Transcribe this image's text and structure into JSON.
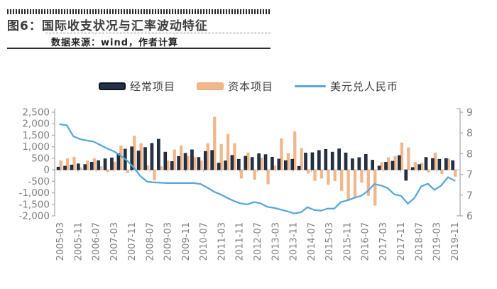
{
  "header": {
    "title": "图6：国际收支状况与汇率波动特征",
    "source": "数据来源：wind，作者计算"
  },
  "legend": [
    {
      "label": "经常项目",
      "swatch": "dark-bar",
      "color": "#243246"
    },
    {
      "label": "资本项目",
      "swatch": "orange-bar",
      "color": "#f1b78c"
    },
    {
      "label": "美元兑人民币",
      "swatch": "blue-line",
      "color": "#58a8da"
    }
  ],
  "chart_data": {
    "type": "bar+line",
    "title": "国际收支状况与汇率波动特征",
    "x_start": "2005-03",
    "x_end": "2019-11",
    "n_points": 60,
    "x_tick_labels": [
      "2005-03",
      "2005-11",
      "2006-07",
      "2007-03",
      "2007-11",
      "2008-07",
      "2009-03",
      "2009-11",
      "2010-07",
      "2011-03",
      "2011-11",
      "2012-07",
      "2013-03",
      "2013-11",
      "2014-07",
      "2015-03",
      "2015-11",
      "2016-07",
      "2017-03",
      "2017-11",
      "2018-07",
      "2019-03",
      "2019-11"
    ],
    "left_axis": {
      "min": -2000,
      "max": 2500,
      "step": 500,
      "tick_labels": [
        "2,500",
        "2,000",
        "1,500",
        "1,000",
        "500",
        "0",
        "-500",
        "-1,000",
        "-1,500",
        "-2,000"
      ]
    },
    "right_axis": {
      "min": 6,
      "max": 9,
      "tick_labels": [
        "9",
        "8",
        "8",
        "7",
        "7",
        "6"
      ]
    },
    "grid": false,
    "legend_position": "top",
    "series": [
      {
        "name": "经常项目",
        "type": "bar",
        "axis": "left",
        "color": "#243246",
        "edge_color": "#10151d",
        "values": [
          120,
          160,
          210,
          260,
          230,
          330,
          400,
          480,
          520,
          700,
          900,
          1000,
          820,
          970,
          1150,
          1330,
          770,
          360,
          580,
          715,
          870,
          540,
          800,
          845,
          290,
          390,
          630,
          460,
          590,
          540,
          700,
          660,
          550,
          470,
          400,
          460,
          150,
          730,
          745,
          840,
          890,
          770,
          910,
          735,
          480,
          530,
          670,
          420,
          165,
          330,
          375,
          620,
          -460,
          100,
          230,
          540,
          490,
          460,
          490,
          400
        ]
      },
      {
        "name": "资本项目",
        "type": "bar",
        "axis": "left",
        "color": "#f1b78c",
        "values": [
          410,
          500,
          560,
          100,
          400,
          500,
          150,
          -100,
          350,
          1050,
          -150,
          1480,
          1150,
          200,
          -460,
          150,
          400,
          880,
          1050,
          600,
          550,
          400,
          1150,
          2300,
          1120,
          1560,
          1150,
          -380,
          745,
          -430,
          530,
          -630,
          180,
          1360,
          715,
          1660,
          940,
          -160,
          -480,
          -380,
          -650,
          -490,
          -915,
          -1340,
          -1230,
          -560,
          -1130,
          -1555,
          335,
          540,
          590,
          1180,
          970,
          335,
          305,
          -120,
          745,
          -180,
          490,
          -300
        ]
      },
      {
        "name": "美元兑人民币",
        "type": "line",
        "axis": "right",
        "color": "#58a8da",
        "values": [
          8.65,
          8.62,
          8.3,
          8.22,
          8.18,
          8.15,
          8.05,
          7.95,
          7.87,
          7.75,
          7.6,
          7.4,
          7.15,
          6.99,
          6.97,
          6.96,
          6.95,
          6.95,
          6.95,
          6.95,
          6.95,
          6.92,
          6.82,
          6.7,
          6.62,
          6.52,
          6.43,
          6.36,
          6.33,
          6.4,
          6.36,
          6.26,
          6.23,
          6.18,
          6.13,
          6.07,
          6.1,
          6.25,
          6.17,
          6.15,
          6.21,
          6.21,
          6.4,
          6.45,
          6.52,
          6.58,
          6.72,
          6.92,
          6.88,
          6.8,
          6.62,
          6.58,
          6.35,
          6.52,
          6.85,
          6.93,
          6.75,
          6.88,
          7.12,
          7.02
        ]
      }
    ],
    "colors": {
      "axis": "#a6a6a6",
      "tick_text": "#7f7f7f"
    }
  }
}
